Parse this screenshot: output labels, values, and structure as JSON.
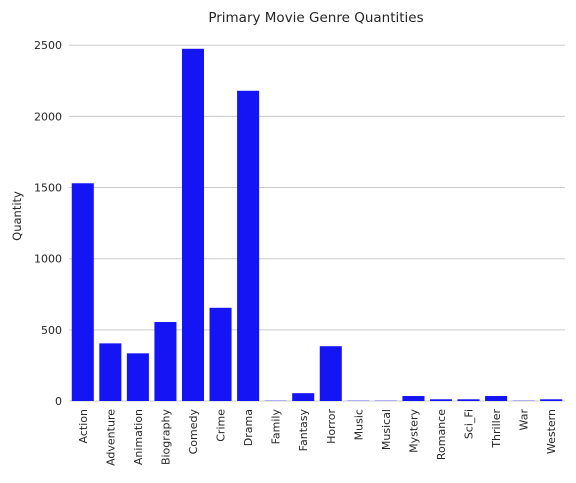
{
  "chart_data": {
    "type": "bar",
    "title": "Primary Movie Genre Quantities",
    "xlabel": "",
    "ylabel": "Quantity",
    "categories": [
      "Action",
      "Adventure",
      "Animation",
      "Biography",
      "Comedy",
      "Crime",
      "Drama",
      "Family",
      "Fantasy",
      "Horror",
      "Music",
      "Musical",
      "Mystery",
      "Romance",
      "Sci_Fi",
      "Thriller",
      "War",
      "Western"
    ],
    "values": [
      1530,
      405,
      335,
      555,
      2475,
      655,
      2180,
      2,
      55,
      385,
      2,
      2,
      35,
      12,
      12,
      35,
      2,
      12
    ],
    "ylim": [
      0,
      2600
    ],
    "yticks": [
      0,
      500,
      1000,
      1500,
      2000,
      2500
    ],
    "grid": "horizontal",
    "bar_color": "#1414f5",
    "grid_color": "#cccccc"
  }
}
